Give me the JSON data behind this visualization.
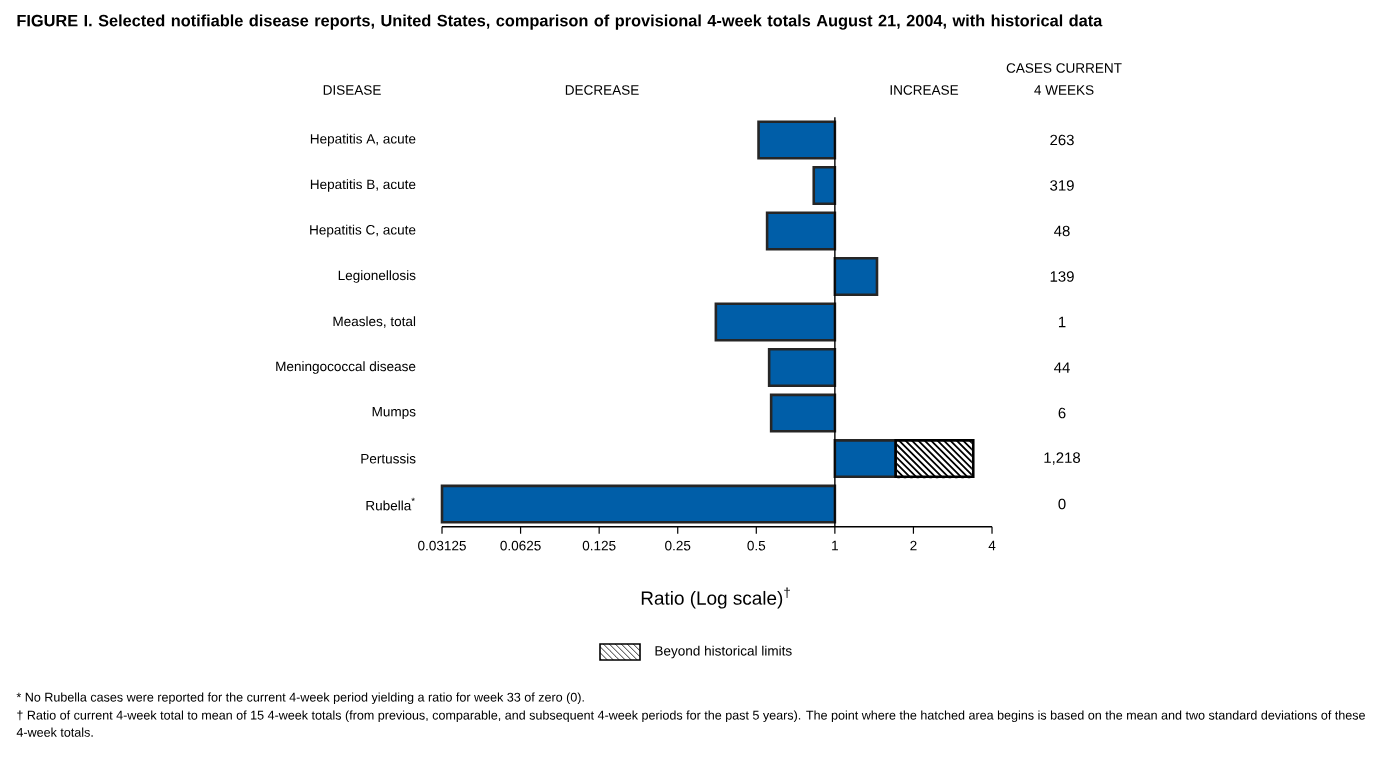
{
  "chart_data": {
    "type": "bar",
    "orientation": "horizontal",
    "log": "x",
    "title": "FIGURE I. Selected notifiable disease reports, United States, comparison of provisional 4-week totals August 21, 2004, with historical data",
    "ylabel": "DISEASE",
    "xlabel": "Ratio (Log scale)$^{†}$",
    "categories": [
      "Hepatitis A, acute",
      "Hepatitis B, acute",
      "Hepatitis C, acute",
      "Legionellosis",
      "Measles, total",
      "Meningococcal disease",
      "Mumps",
      "Pertussis",
      "Rubella$^{*}$"
    ],
    "series": [
      {
        "color": "#005ea8",
        "base": [
          1,
          1,
          1,
          1,
          1,
          1,
          1,
          1,
          1
        ],
        "values": [
          -0.49,
          -0.17,
          -0.45,
          0.45,
          -0.65,
          -0.44,
          -0.43,
          0.71,
          -0.96875
        ]
      },
      {
        "name": "Beyond historical limits",
        "color": "#000000",
        "base": [
          null,
          null,
          null,
          null,
          null,
          null,
          null,
          1.71,
          null
        ],
        "values": [
          null,
          null,
          null,
          null,
          null,
          null,
          null,
          1.68,
          null
        ]
      }
    ],
    "xlim": [
      0.03125,
      4
    ],
    "xticks": [
      0.03125,
      0.0625,
      0.125,
      0.25,
      0.5,
      1,
      2,
      4
    ],
    "ref_lines": [
      {
        "axis": "x",
        "value": 1
      }
    ],
    "legend": "bottom",
    "annotations": [
      "DECREASE",
      "INCREASE",
      "CASES CURRENT",
      "4 WEEKS",
      "263",
      "319",
      "48",
      "139",
      "1",
      "44",
      "6",
      "1,218",
      "0",
      "* No Rubella cases were reported for the current 4-week period yielding a ratio for week 33 of zero (0).",
      "† Ratio of current 4-week total to mean of 15 4-week totals (from previous, comparable, and subsequent 4-week periods for the past 5 years). The point where the hatched area begins is based on the mean and two standard deviations of these 4-week totals."
    ]
  }
}
